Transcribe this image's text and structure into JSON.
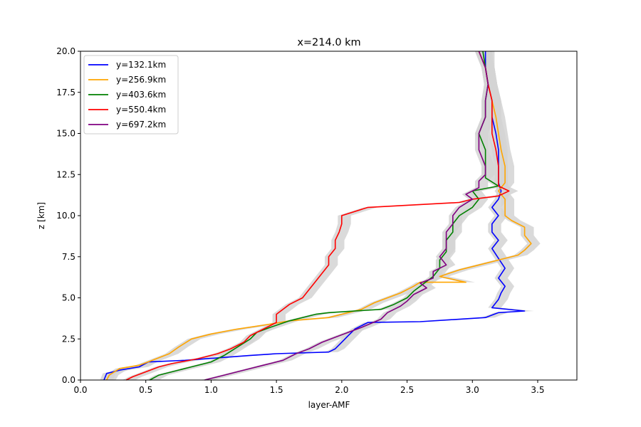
{
  "chart_data": {
    "type": "line",
    "title": "x=214.0 km",
    "xlabel": "layer-AMF",
    "ylabel": "z [km]",
    "xlim": [
      0.0,
      3.8
    ],
    "ylim": [
      0.0,
      20.0
    ],
    "xticks": [
      "0.0",
      "0.5",
      "1.0",
      "1.5",
      "2.0",
      "2.5",
      "3.0",
      "3.5"
    ],
    "yticks": [
      "0.0",
      "2.5",
      "5.0",
      "7.5",
      "10.0",
      "12.5",
      "15.0",
      "17.5",
      "20.0"
    ],
    "legend_position": "top-left",
    "grid": false,
    "uncertainty_band_color": "#d3d3d3",
    "series": [
      {
        "name": "y=132.1km",
        "color": "#0000ff",
        "points": [
          [
            0.18,
            0.0
          ],
          [
            0.2,
            0.4
          ],
          [
            0.3,
            0.6
          ],
          [
            0.45,
            0.8
          ],
          [
            0.52,
            1.1
          ],
          [
            0.8,
            1.2
          ],
          [
            1.3,
            1.5
          ],
          [
            1.5,
            1.6
          ],
          [
            1.9,
            1.7
          ],
          [
            1.95,
            1.9
          ],
          [
            2.0,
            2.3
          ],
          [
            2.05,
            2.7
          ],
          [
            2.1,
            3.1
          ],
          [
            2.2,
            3.5
          ],
          [
            2.6,
            3.55
          ],
          [
            3.1,
            3.8
          ],
          [
            3.2,
            4.1
          ],
          [
            3.4,
            4.2
          ],
          [
            3.15,
            4.4
          ],
          [
            3.2,
            4.9
          ],
          [
            3.22,
            5.3
          ],
          [
            3.25,
            5.7
          ],
          [
            3.2,
            6.2
          ],
          [
            3.25,
            6.8
          ],
          [
            3.2,
            7.4
          ],
          [
            3.15,
            8.0
          ],
          [
            3.2,
            8.5
          ],
          [
            3.15,
            9.0
          ],
          [
            3.15,
            9.5
          ],
          [
            3.2,
            10.0
          ],
          [
            3.15,
            10.5
          ],
          [
            3.2,
            11.0
          ],
          [
            3.22,
            11.5
          ],
          [
            3.2,
            12.0
          ],
          [
            3.2,
            13.0
          ],
          [
            3.2,
            14.0
          ],
          [
            3.18,
            15.0
          ],
          [
            3.15,
            16.0
          ],
          [
            3.15,
            17.0
          ],
          [
            3.12,
            18.0
          ],
          [
            3.1,
            19.0
          ],
          [
            3.1,
            20.0
          ]
        ]
      },
      {
        "name": "y=256.9km",
        "color": "#ffa500",
        "points": [
          [
            0.2,
            0.0
          ],
          [
            0.22,
            0.3
          ],
          [
            0.3,
            0.7
          ],
          [
            0.45,
            0.9
          ],
          [
            0.55,
            1.2
          ],
          [
            0.68,
            1.6
          ],
          [
            0.75,
            2.0
          ],
          [
            0.85,
            2.5
          ],
          [
            1.0,
            2.8
          ],
          [
            1.2,
            3.1
          ],
          [
            1.45,
            3.4
          ],
          [
            1.6,
            3.6
          ],
          [
            1.9,
            3.8
          ],
          [
            2.15,
            4.3
          ],
          [
            2.25,
            4.7
          ],
          [
            2.35,
            5.0
          ],
          [
            2.45,
            5.3
          ],
          [
            2.55,
            5.7
          ],
          [
            2.6,
            5.95
          ],
          [
            2.95,
            5.95
          ],
          [
            2.75,
            6.3
          ],
          [
            2.9,
            6.7
          ],
          [
            3.05,
            7.0
          ],
          [
            3.2,
            7.3
          ],
          [
            3.35,
            7.6
          ],
          [
            3.4,
            7.9
          ],
          [
            3.45,
            8.3
          ],
          [
            3.4,
            8.8
          ],
          [
            3.4,
            9.3
          ],
          [
            3.3,
            9.7
          ],
          [
            3.25,
            10.0
          ],
          [
            3.25,
            10.5
          ],
          [
            3.25,
            11.0
          ],
          [
            3.2,
            11.5
          ],
          [
            3.25,
            12.0
          ],
          [
            3.25,
            13.0
          ],
          [
            3.22,
            14.0
          ],
          [
            3.2,
            15.0
          ],
          [
            3.18,
            16.0
          ],
          [
            3.15,
            17.0
          ],
          [
            3.12,
            18.0
          ],
          [
            3.1,
            19.0
          ],
          [
            3.05,
            20.0
          ]
        ]
      },
      {
        "name": "y=403.6km",
        "color": "#008000",
        "points": [
          [
            0.53,
            0.0
          ],
          [
            0.6,
            0.3
          ],
          [
            0.75,
            0.6
          ],
          [
            0.85,
            0.8
          ],
          [
            1.0,
            1.1
          ],
          [
            1.1,
            1.5
          ],
          [
            1.2,
            2.0
          ],
          [
            1.3,
            2.5
          ],
          [
            1.35,
            2.9
          ],
          [
            1.45,
            3.2
          ],
          [
            1.6,
            3.6
          ],
          [
            1.8,
            4.0
          ],
          [
            1.9,
            4.1
          ],
          [
            2.3,
            4.3
          ],
          [
            2.4,
            4.6
          ],
          [
            2.5,
            5.0
          ],
          [
            2.55,
            5.4
          ],
          [
            2.6,
            5.7
          ],
          [
            2.65,
            6.0
          ],
          [
            2.7,
            6.3
          ],
          [
            2.75,
            6.8
          ],
          [
            2.75,
            7.3
          ],
          [
            2.8,
            7.8
          ],
          [
            2.8,
            8.5
          ],
          [
            2.85,
            9.0
          ],
          [
            2.85,
            9.5
          ],
          [
            2.9,
            10.0
          ],
          [
            3.0,
            10.5
          ],
          [
            3.05,
            11.0
          ],
          [
            3.0,
            11.5
          ],
          [
            3.2,
            11.8
          ],
          [
            3.1,
            12.3
          ],
          [
            3.1,
            13.0
          ],
          [
            3.1,
            14.0
          ],
          [
            3.05,
            15.0
          ],
          [
            3.1,
            16.0
          ],
          [
            3.1,
            17.0
          ],
          [
            3.12,
            18.0
          ],
          [
            3.1,
            19.0
          ],
          [
            3.08,
            20.0
          ]
        ]
      },
      {
        "name": "y=550.4km",
        "color": "#ff0000",
        "points": [
          [
            0.35,
            0.0
          ],
          [
            0.4,
            0.2
          ],
          [
            0.5,
            0.5
          ],
          [
            0.6,
            0.8
          ],
          [
            0.7,
            1.0
          ],
          [
            0.9,
            1.3
          ],
          [
            1.05,
            1.6
          ],
          [
            1.15,
            1.9
          ],
          [
            1.25,
            2.3
          ],
          [
            1.3,
            2.7
          ],
          [
            1.4,
            3.1
          ],
          [
            1.5,
            3.5
          ],
          [
            1.5,
            4.0
          ],
          [
            1.6,
            4.6
          ],
          [
            1.7,
            5.0
          ],
          [
            1.75,
            5.5
          ],
          [
            1.8,
            6.0
          ],
          [
            1.85,
            6.5
          ],
          [
            1.9,
            7.0
          ],
          [
            1.9,
            7.5
          ],
          [
            1.95,
            8.0
          ],
          [
            1.95,
            8.5
          ],
          [
            1.98,
            9.0
          ],
          [
            2.0,
            9.5
          ],
          [
            2.0,
            10.0
          ],
          [
            2.2,
            10.5
          ],
          [
            2.9,
            10.8
          ],
          [
            3.0,
            11.0
          ],
          [
            3.2,
            11.2
          ],
          [
            3.28,
            11.5
          ],
          [
            3.2,
            11.8
          ],
          [
            3.2,
            12.3
          ],
          [
            3.2,
            13.0
          ],
          [
            3.18,
            14.0
          ],
          [
            3.15,
            15.0
          ],
          [
            3.15,
            16.0
          ],
          [
            3.15,
            17.0
          ],
          [
            3.12,
            18.0
          ],
          [
            3.1,
            19.0
          ],
          [
            3.05,
            20.0
          ]
        ]
      },
      {
        "name": "y=697.2km",
        "color": "#800080",
        "points": [
          [
            0.95,
            0.0
          ],
          [
            1.1,
            0.3
          ],
          [
            1.25,
            0.6
          ],
          [
            1.4,
            0.9
          ],
          [
            1.55,
            1.2
          ],
          [
            1.65,
            1.6
          ],
          [
            1.75,
            1.9
          ],
          [
            1.85,
            2.3
          ],
          [
            1.95,
            2.6
          ],
          [
            2.05,
            2.9
          ],
          [
            2.15,
            3.2
          ],
          [
            2.3,
            3.7
          ],
          [
            2.35,
            4.1
          ],
          [
            2.45,
            4.5
          ],
          [
            2.5,
            4.8
          ],
          [
            2.55,
            5.2
          ],
          [
            2.65,
            5.6
          ],
          [
            2.6,
            5.9
          ],
          [
            2.7,
            6.2
          ],
          [
            2.7,
            6.6
          ],
          [
            2.8,
            7.0
          ],
          [
            2.75,
            7.5
          ],
          [
            2.8,
            8.0
          ],
          [
            2.8,
            8.5
          ],
          [
            2.8,
            9.0
          ],
          [
            2.85,
            9.5
          ],
          [
            2.85,
            10.0
          ],
          [
            2.9,
            10.5
          ],
          [
            3.0,
            11.0
          ],
          [
            2.95,
            11.3
          ],
          [
            3.05,
            11.7
          ],
          [
            3.05,
            12.1
          ],
          [
            3.1,
            12.5
          ],
          [
            3.1,
            13.0
          ],
          [
            3.05,
            14.0
          ],
          [
            3.05,
            15.0
          ],
          [
            3.1,
            16.0
          ],
          [
            3.1,
            17.0
          ],
          [
            3.12,
            18.0
          ],
          [
            3.1,
            19.0
          ],
          [
            3.05,
            20.0
          ]
        ]
      }
    ]
  }
}
